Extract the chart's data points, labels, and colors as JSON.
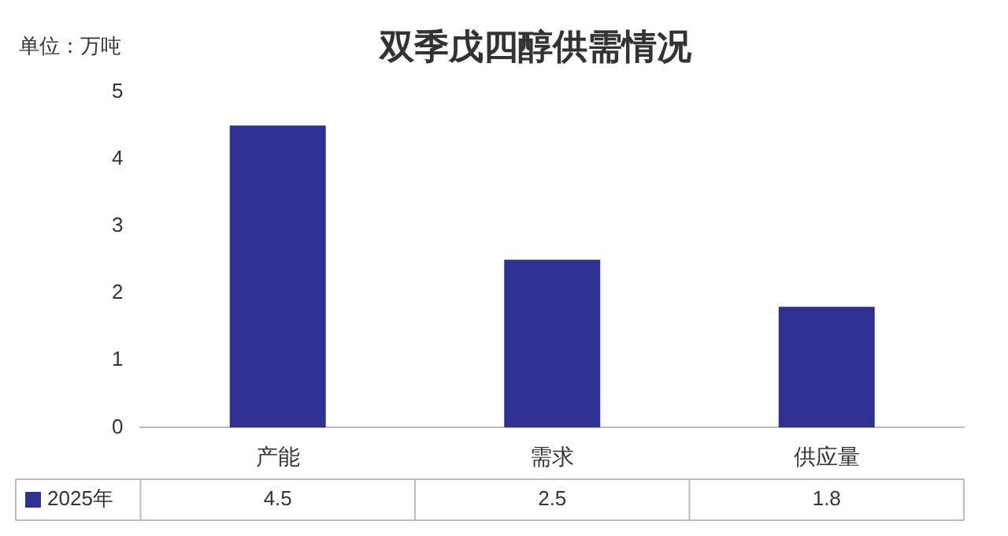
{
  "chart_data": {
    "type": "bar",
    "title": "双季戊四醇供需情况",
    "ylabel": "单位：万吨",
    "categories": [
      "产能",
      "需求",
      "供应量"
    ],
    "series": [
      {
        "name": "2025年",
        "color": "#2e3192",
        "values": [
          4.5,
          2.5,
          1.8
        ]
      }
    ],
    "ylim": [
      0,
      5
    ],
    "yticks": [
      0,
      1,
      2,
      3,
      4,
      5
    ],
    "grid": false,
    "legend": "bottom left",
    "data_labels": true
  }
}
